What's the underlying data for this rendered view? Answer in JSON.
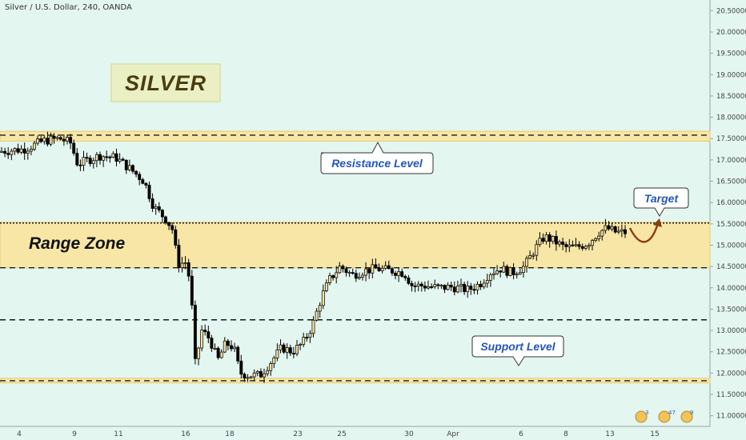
{
  "chart_data": {
    "type": "candlestick",
    "title": "Silver / U.S. Dollar, 240, OANDA",
    "ylim": [
      10.75,
      20.75
    ],
    "yticks": [
      "11.00000",
      "11.50000",
      "12.00000",
      "12.50000",
      "13.00000",
      "13.50000",
      "14.00000",
      "14.50000",
      "15.00000",
      "15.50000",
      "16.00000",
      "16.50000",
      "17.00000",
      "17.50000",
      "18.00000",
      "18.50000",
      "19.00000",
      "19.50000",
      "20.00000",
      "20.50000"
    ],
    "xticks": [
      "4",
      "9",
      "11",
      "16",
      "18",
      "23",
      "25",
      "30",
      "Apr",
      "6",
      "8",
      "13",
      "15"
    ],
    "levels": {
      "resistance_band": [
        17.44,
        17.67
      ],
      "range_zone": [
        14.47,
        15.54
      ],
      "support_band": [
        11.77,
        11.88
      ],
      "dashed_lines": [
        17.58,
        14.47,
        13.25,
        11.82
      ],
      "dotted_line": 15.52
    },
    "candles_path": [
      {
        "x": 0,
        "y": 17.2
      },
      {
        "x": 30,
        "y": 17.25
      },
      {
        "x": 55,
        "y": 17.45
      },
      {
        "x": 75,
        "y": 17.5
      },
      {
        "x": 88,
        "y": 17.4
      },
      {
        "x": 97,
        "y": 16.9
      },
      {
        "x": 110,
        "y": 17.0
      },
      {
        "x": 125,
        "y": 17.1
      },
      {
        "x": 145,
        "y": 17.05
      },
      {
        "x": 165,
        "y": 16.75
      },
      {
        "x": 180,
        "y": 16.5
      },
      {
        "x": 192,
        "y": 15.9
      },
      {
        "x": 208,
        "y": 15.6
      },
      {
        "x": 216,
        "y": 15.35
      },
      {
        "x": 222,
        "y": 14.55
      },
      {
        "x": 232,
        "y": 14.6
      },
      {
        "x": 238,
        "y": 14.1
      },
      {
        "x": 244,
        "y": 12.2
      },
      {
        "x": 252,
        "y": 13.0
      },
      {
        "x": 262,
        "y": 12.8
      },
      {
        "x": 272,
        "y": 12.3
      },
      {
        "x": 282,
        "y": 12.7
      },
      {
        "x": 292,
        "y": 12.6
      },
      {
        "x": 300,
        "y": 12.0
      },
      {
        "x": 310,
        "y": 11.95
      },
      {
        "x": 325,
        "y": 11.95
      },
      {
        "x": 340,
        "y": 12.3
      },
      {
        "x": 352,
        "y": 12.6
      },
      {
        "x": 365,
        "y": 12.5
      },
      {
        "x": 378,
        "y": 12.7
      },
      {
        "x": 390,
        "y": 13.1
      },
      {
        "x": 402,
        "y": 13.8
      },
      {
        "x": 412,
        "y": 14.2
      },
      {
        "x": 425,
        "y": 14.5
      },
      {
        "x": 440,
        "y": 14.3
      },
      {
        "x": 455,
        "y": 14.4
      },
      {
        "x": 470,
        "y": 14.45
      },
      {
        "x": 490,
        "y": 14.4
      },
      {
        "x": 505,
        "y": 14.35
      },
      {
        "x": 515,
        "y": 14.05
      },
      {
        "x": 530,
        "y": 14.05
      },
      {
        "x": 548,
        "y": 14.0
      },
      {
        "x": 565,
        "y": 14.02
      },
      {
        "x": 585,
        "y": 13.95
      },
      {
        "x": 600,
        "y": 14.1
      },
      {
        "x": 612,
        "y": 14.35
      },
      {
        "x": 625,
        "y": 14.45
      },
      {
        "x": 640,
        "y": 14.35
      },
      {
        "x": 655,
        "y": 14.5
      },
      {
        "x": 668,
        "y": 14.9
      },
      {
        "x": 680,
        "y": 15.2
      },
      {
        "x": 692,
        "y": 15.1
      },
      {
        "x": 705,
        "y": 14.95
      },
      {
        "x": 720,
        "y": 14.95
      },
      {
        "x": 735,
        "y": 15.05
      },
      {
        "x": 748,
        "y": 15.3
      },
      {
        "x": 758,
        "y": 15.4
      },
      {
        "x": 770,
        "y": 15.3
      },
      {
        "x": 782,
        "y": 15.3
      }
    ]
  },
  "annotations": {
    "silver": "SILVER",
    "range_zone": "Range Zone",
    "resistance": "Resistance Level",
    "support": "Support Level",
    "target": "Target"
  },
  "colors": {
    "background": "#e3f6ef",
    "band_fill": "#f8e6a6",
    "band_edge": "#e6cc70",
    "bull_candle": "#f4dfa0",
    "bear_candle": "#000000",
    "callout_text": "#2456b8",
    "target_arrow": "#8b3a0e"
  },
  "toolbar_icons": [
    "badge-icon-1",
    "badge-icon-2",
    "badge-icon-3"
  ],
  "toolbar_counts": [
    "3",
    "47",
    "9"
  ]
}
